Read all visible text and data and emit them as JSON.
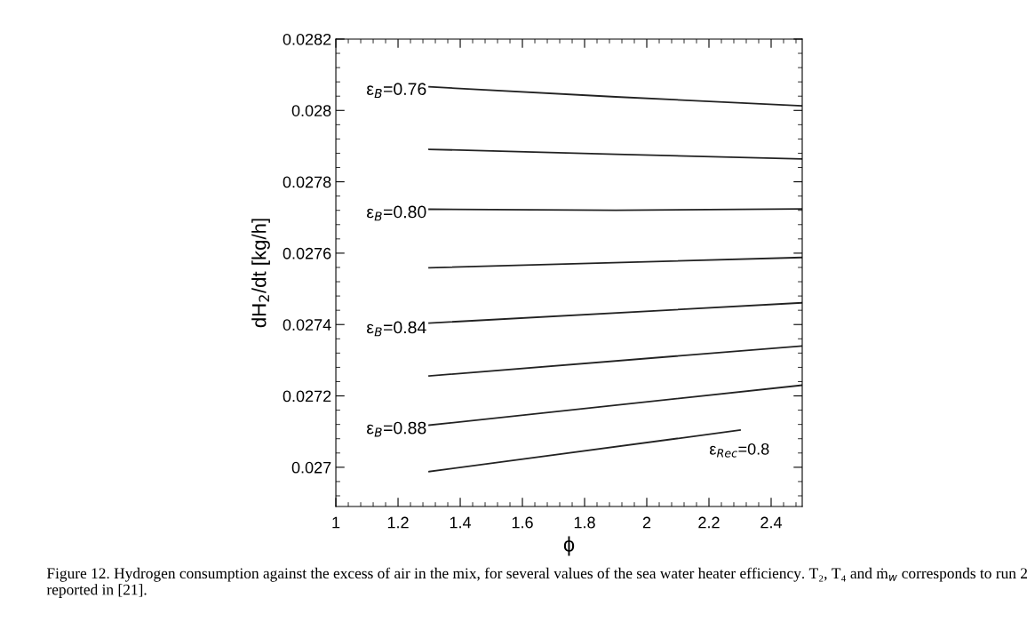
{
  "chart_data": {
    "type": "line",
    "xlabel": "ϕ",
    "ylabel": "dH$_{2}$/dt [kg/h]",
    "xlim": [
      1,
      2.5
    ],
    "ylim": [
      0.02689,
      0.0282
    ],
    "xticks": [
      1,
      1.2,
      1.4,
      1.6,
      1.8,
      2,
      2.2,
      2.4
    ],
    "yticks": [
      0.027,
      0.0272,
      0.0274,
      0.0276,
      0.0278,
      0.028,
      0.0282
    ],
    "grid": false,
    "marker": "none",
    "line_style": "solid",
    "series": [
      {
        "color": "#222222",
        "x": [
          1.3,
          1.9,
          2.5
        ],
        "values": [
          0.028066,
          0.028038,
          0.028013
        ]
      },
      {
        "color": "#222222",
        "x": [
          1.3,
          1.9,
          2.5
        ],
        "values": [
          0.027891,
          0.027877,
          0.027864
        ]
      },
      {
        "color": "#222222",
        "x": [
          1.3,
          1.9,
          2.5
        ],
        "values": [
          0.027723,
          0.02772,
          0.027724
        ]
      },
      {
        "color": "#222222",
        "x": [
          1.3,
          2.5
        ],
        "values": [
          0.027559,
          0.027588
        ]
      },
      {
        "color": "#222222",
        "x": [
          1.3,
          2.5
        ],
        "values": [
          0.027404,
          0.027461
        ]
      },
      {
        "color": "#222222",
        "x": [
          1.3,
          2.5
        ],
        "values": [
          0.027256,
          0.02734
        ]
      },
      {
        "color": "#222222",
        "x": [
          1.3,
          2.5
        ],
        "values": [
          0.027118,
          0.02723
        ]
      },
      {
        "color": "#222222",
        "x": [
          1.3,
          2.3
        ],
        "values": [
          0.026988,
          0.027104
        ]
      }
    ],
    "annotations": [
      "ε$_{B}$=0.76",
      "ε$_{B}$=0.80",
      "ε$_{B}$=0.84",
      "ε$_{B}$=0.88",
      "ε$_{Rec}$=0.8",
      "Figure 12. Hydrogen consumption against the excess of air in the mix, for several values of the sea water heater efficiency. T₂, T₄ and ṁ$_{w}$ corresponds to run 2 reported in [21]."
    ]
  }
}
